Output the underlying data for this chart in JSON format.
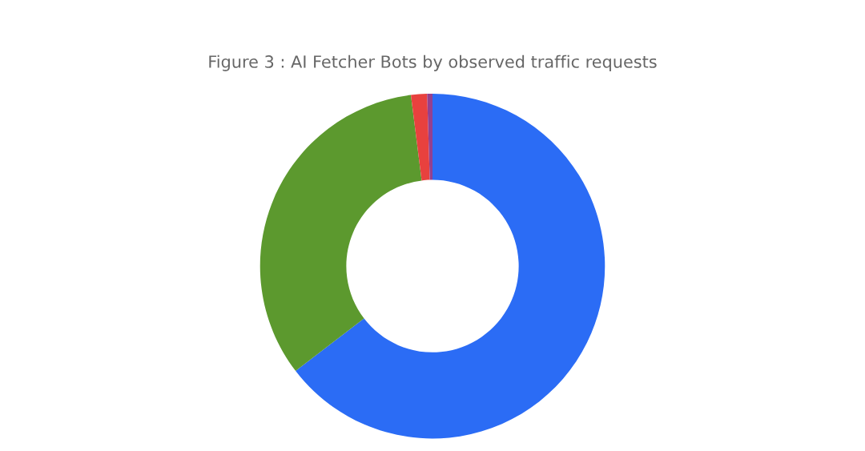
{
  "chart_data": {
    "type": "donut",
    "title": "Figure 3 : AI Fetcher Bots by observed traffic requests",
    "categories": [
      null,
      null,
      null,
      null
    ],
    "values": [
      64.6,
      33.4,
      1.5,
      0.5
    ],
    "colors": [
      "#2b6cf5",
      "#5c992e",
      "#e8413e",
      "#94408f"
    ]
  }
}
